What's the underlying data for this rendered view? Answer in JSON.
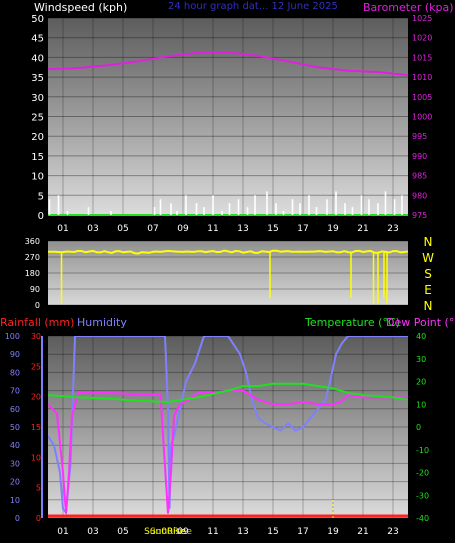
{
  "colors": {
    "background": "#000000",
    "wind": "#ffffff",
    "wind_label": "#ffffff",
    "baro": "#e020e0",
    "direction": "#ffff00",
    "rain": "#ff2020",
    "humidity": "#8080ff",
    "temperature": "#20e020",
    "dewpoint": "#ff30ff",
    "header_center": "#3030c0"
  },
  "chart_data": [
    {
      "type": "line",
      "panel": "wind-baro",
      "title": "24 hour graph dat... 12 June 2025",
      "ylabel_left": "Windspeed (kph)",
      "ylabel_right": "Barometer (kpa)",
      "ylim_left": [
        0,
        50
      ],
      "ylim_right": [
        975,
        1025
      ],
      "yticks_left": [
        "0",
        "5",
        "10",
        "15",
        "20",
        "25",
        "30",
        "35",
        "40",
        "45",
        "50"
      ],
      "yticks_right": [
        "975",
        "980",
        "985",
        "990",
        "995",
        "1000",
        "1005",
        "1010",
        "1015",
        "1020",
        "1025"
      ],
      "xticks": [
        "01",
        "03",
        "05",
        "07",
        "09",
        "11",
        "13",
        "15",
        "17",
        "19",
        "21",
        "23"
      ],
      "grid": true,
      "series": [
        {
          "name": "Barometer",
          "axis": "right",
          "hours": [
            0,
            2,
            4,
            6,
            8,
            10,
            12,
            14,
            16,
            18,
            20,
            22,
            24
          ],
          "values": [
            1012,
            1012.3,
            1013,
            1014,
            1015.3,
            1016.2,
            1016.3,
            1015.4,
            1014,
            1012.5,
            1011.6,
            1011.3,
            1010.5
          ]
        },
        {
          "name": "Windspeed",
          "axis": "left",
          "kind": "bar",
          "hours": [
            0.1,
            0.7,
            1.3,
            2.7,
            4.2,
            7.1,
            7.5,
            8.2,
            8.6,
            9.2,
            9.9,
            10.4,
            11.0,
            11.6,
            12.1,
            12.7,
            13.3,
            13.8,
            14.6,
            15.2,
            15.7,
            16.3,
            16.8,
            17.4,
            17.9,
            18.6,
            19.2,
            19.8,
            20.3,
            20.9,
            21.4,
            22.0,
            22.5,
            23.1,
            23.6
          ],
          "values": [
            4,
            5,
            1,
            2,
            1,
            2,
            4,
            3,
            1,
            5,
            3,
            2,
            5,
            1,
            3,
            4,
            2,
            5,
            6,
            3,
            1,
            4,
            3,
            5,
            2,
            4,
            6,
            3,
            2,
            5,
            4,
            3,
            6,
            4,
            5
          ]
        }
      ]
    },
    {
      "type": "line",
      "panel": "wind-direction",
      "ylim": [
        0,
        360
      ],
      "yticks": [
        "0",
        "90",
        "180",
        "270",
        "360"
      ],
      "compass_labels": [
        "N",
        "W",
        "S",
        "E",
        "N"
      ],
      "series": [
        {
          "name": "Direction",
          "hours": [
            0,
            1,
            2,
            3,
            4,
            5,
            6,
            7,
            8,
            9,
            10,
            11,
            12,
            13,
            14,
            15,
            16,
            17,
            18,
            19,
            20,
            21,
            22,
            23,
            24
          ],
          "values": [
            300,
            298,
            302,
            300,
            297,
            301,
            292,
            298,
            303,
            299,
            301,
            300,
            302,
            299,
            296,
            304,
            301,
            299,
            302,
            300,
            298,
            303,
            296,
            301,
            298
          ],
          "spikes": [
            {
              "hour": 0.9,
              "value": 5
            },
            {
              "hour": 14.8,
              "value": 40
            },
            {
              "hour": 20.2,
              "value": 40
            },
            {
              "hour": 21.7,
              "value": 5
            },
            {
              "hour": 22.0,
              "value": 5
            },
            {
              "hour": 22.4,
              "value": 40
            },
            {
              "hour": 22.6,
              "value": 5
            }
          ]
        }
      ]
    },
    {
      "type": "line",
      "panel": "rain-hum-temp",
      "labels": {
        "rainfall": "Rainfall (mm)",
        "humidity": "Humidity",
        "temperature": "Temperature (°C)",
        "dewpoint": "Dew Point (°C)"
      },
      "ylim_humidity": [
        0,
        100
      ],
      "ylim_temp": [
        -40,
        40
      ],
      "yticks_humidity": [
        "0",
        "10",
        "20",
        "30",
        "40",
        "50",
        "60",
        "70",
        "80",
        "90",
        "100"
      ],
      "yticks_rain": [
        "0",
        "5",
        "10",
        "15",
        "20",
        "25",
        "30"
      ],
      "yticks_temp": [
        "-40",
        "-30",
        "-20",
        "-10",
        "0",
        "10",
        "20",
        "30",
        "40"
      ],
      "xticks": [
        "01",
        "03",
        "05",
        "07",
        "09",
        "11",
        "13",
        "15",
        "17",
        "19",
        "21",
        "23"
      ],
      "sun_labels": [
        "Sun0Rise",
        "Sun0Rise"
      ],
      "series": [
        {
          "name": "Humidity",
          "hours": [
            0,
            0.4,
            0.8,
            1.0,
            1.2,
            1.5,
            1.8,
            2.5,
            5,
            7.8,
            8.0,
            8.1,
            8.2,
            8.4,
            8.8,
            9.2,
            9.8,
            10.4,
            10.8,
            11.2,
            12.0,
            12.4,
            12.8,
            13.2,
            13.6,
            14.0,
            14.5,
            15.0,
            15.5,
            16.0,
            16.5,
            17.0,
            17.5,
            18.0,
            18.5,
            18.8,
            19.2,
            19.6,
            20.0,
            21,
            22,
            23,
            24
          ],
          "values": [
            45,
            40,
            25,
            5,
            3,
            30,
            100,
            100,
            100,
            100,
            60,
            5,
            40,
            45,
            60,
            75,
            85,
            100,
            100,
            100,
            100,
            95,
            90,
            80,
            65,
            55,
            52,
            50,
            48,
            52,
            48,
            50,
            55,
            60,
            65,
            75,
            90,
            96,
            100,
            100,
            100,
            100,
            100
          ]
        },
        {
          "name": "Dew Point",
          "hours": [
            0,
            0.6,
            1.0,
            1.2,
            1.4,
            1.6,
            2,
            4,
            7.5,
            8.0,
            8.2,
            8.4,
            8.8,
            9.4,
            10,
            11,
            12,
            13,
            14,
            15,
            16,
            17,
            18,
            19,
            19.5,
            20,
            21,
            22,
            23,
            24
          ],
          "values": [
            10,
            6,
            -20,
            -38,
            -20,
            5,
            15,
            15,
            14,
            -38,
            -20,
            5,
            10,
            12,
            15,
            15,
            16,
            16,
            12,
            10,
            10,
            11,
            10,
            10,
            11,
            14,
            13,
            13,
            13,
            13
          ]
        },
        {
          "name": "Temperature",
          "hours": [
            0,
            2,
            4,
            6,
            8,
            10,
            12,
            13,
            14,
            15,
            16,
            17,
            18,
            19,
            20,
            21,
            22,
            23,
            24
          ],
          "values": [
            14,
            13,
            12.5,
            11.5,
            11,
            13,
            16,
            18,
            18,
            19,
            19,
            19,
            18,
            17,
            15,
            14,
            13.5,
            13,
            12
          ]
        },
        {
          "name": "Rainfall",
          "hours": [
            0,
            24
          ],
          "values": [
            0,
            0
          ]
        }
      ]
    }
  ]
}
